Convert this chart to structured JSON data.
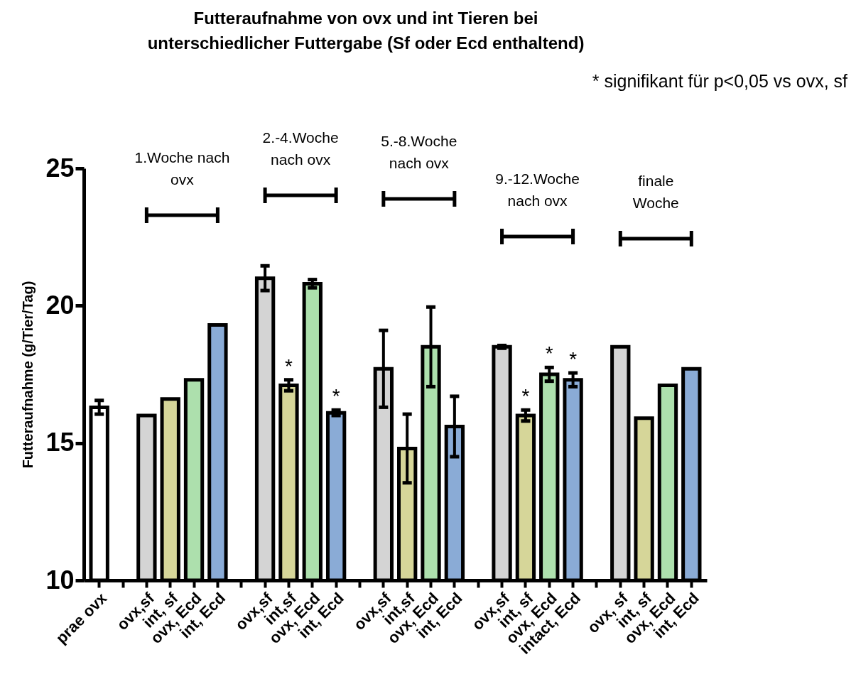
{
  "chart_data": {
    "type": "bar",
    "title": "Futteraufnahme von ovx und int Tieren bei\nunterschiedlicher Futtergabe  (Sf oder Ecd enthaltend)",
    "ylabel": "Futteraufnahme (g/Tier/Tag)",
    "annotations": [
      "* signifikant für p<0,05 vs ovx, sf",
      "1.Woche nach\novx",
      "2.-4.Woche\nnach ovx",
      "5.-8.Woche\nnach ovx",
      "9.-12.Woche\nnach ovx",
      "finale\nWoche"
    ],
    "categories": [
      "prae ovx",
      null,
      "ovx,sf",
      "int, sf",
      "ovx, Ecd",
      "int, Ecd",
      null,
      "ovx,sf",
      "int,sf",
      "ovx, Ecd",
      "int, Ecd",
      null,
      "ovx,sf",
      "int,sf",
      "ovx, Ecd",
      "int, Ecd",
      null,
      "ovx,sf",
      "int, sf",
      "ovx, Ecd",
      "intact, Ecd",
      null,
      "ovx, sf",
      "int, sf",
      "ovx, Ecd",
      "int, Ecd"
    ],
    "values": [
      16.3,
      null,
      16.0,
      16.6,
      17.3,
      19.3,
      null,
      21.0,
      17.1,
      20.8,
      16.1,
      null,
      17.7,
      14.8,
      18.5,
      15.6,
      null,
      18.5,
      16.0,
      17.5,
      17.3,
      null,
      18.5,
      15.9,
      17.1,
      17.7
    ],
    "colors": [
      "#ffffff",
      null,
      "#d4d4d4",
      "#d6d699",
      "#ade0ad",
      "#8aabd6",
      null,
      "#d4d4d4",
      "#d6d699",
      "#ade0ad",
      "#8aabd6",
      null,
      "#d4d4d4",
      "#d6d699",
      "#ade0ad",
      "#8aabd6",
      null,
      "#d4d4d4",
      "#d6d699",
      "#ade0ad",
      "#8aabd6",
      null,
      "#d4d4d4",
      "#d6d699",
      "#ade0ad",
      "#8aabd6"
    ],
    "errors": [
      0.25,
      null,
      null,
      null,
      null,
      null,
      null,
      0.45,
      0.2,
      0.15,
      0.1,
      null,
      1.4,
      1.25,
      1.45,
      1.1,
      null,
      0.05,
      0.2,
      0.25,
      0.25,
      null,
      null,
      null,
      null,
      null
    ],
    "value_labels": [
      null,
      null,
      null,
      null,
      null,
      null,
      null,
      null,
      "*",
      null,
      "*",
      null,
      null,
      null,
      null,
      null,
      null,
      null,
      "*",
      "*",
      "*",
      null,
      null,
      null,
      null,
      null
    ],
    "ylim": [
      10,
      25
    ],
    "yticks": [
      10,
      15,
      20,
      25
    ]
  }
}
